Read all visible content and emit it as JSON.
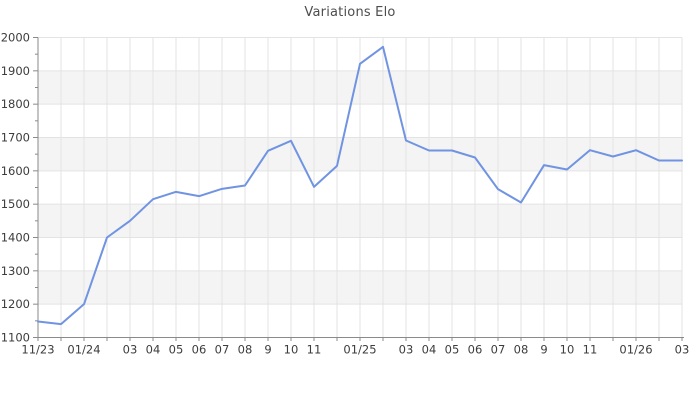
{
  "page": {
    "background": "#ffffff"
  },
  "chart_data": {
    "type": "line",
    "title": "Variations Elo",
    "x_tick_labels": [
      "11/23",
      "",
      "01/24",
      "",
      "03",
      "04",
      "05",
      "06",
      "07",
      "08",
      "9",
      "10",
      "11",
      "",
      "01/25",
      "",
      "03",
      "04",
      "05",
      "06",
      "07",
      "08",
      "9",
      "10",
      "11",
      "",
      "01/26",
      "",
      "03"
    ],
    "y_tick_labels": [
      "1100",
      "1200",
      "1300",
      "1400",
      "1500",
      "1600",
      "1700",
      "1800",
      "1900",
      "2000"
    ],
    "series": [
      {
        "name": "Elo",
        "values": [
          1148,
          1140,
          1200,
          1400,
          1450,
          1515,
          1537,
          1524,
          1546,
          1556,
          1660,
          1690,
          1552,
          1615,
          1921,
          1972,
          1691,
          1661,
          1661,
          1640,
          1545,
          1505,
          1617,
          1604,
          1662,
          1643,
          1662,
          1631,
          1631
        ]
      }
    ],
    "ylim": [
      1100,
      2000
    ],
    "ytick_major_step": 100,
    "ytick_minor_step": 50,
    "grid": true,
    "legend": "none",
    "band_fill_ranges": [
      [
        1200,
        1300
      ],
      [
        1400,
        1500
      ],
      [
        1600,
        1700
      ],
      [
        1800,
        1900
      ]
    ],
    "colors": {
      "line": "#7093e2",
      "band_fill": "#f4f4f4",
      "grid_line": "#e3e3e3",
      "axis_line": "#8a8a8a",
      "tick_text": "#3d3d3d",
      "title_text": "#4d4d4d",
      "background": "#ffffff"
    }
  }
}
